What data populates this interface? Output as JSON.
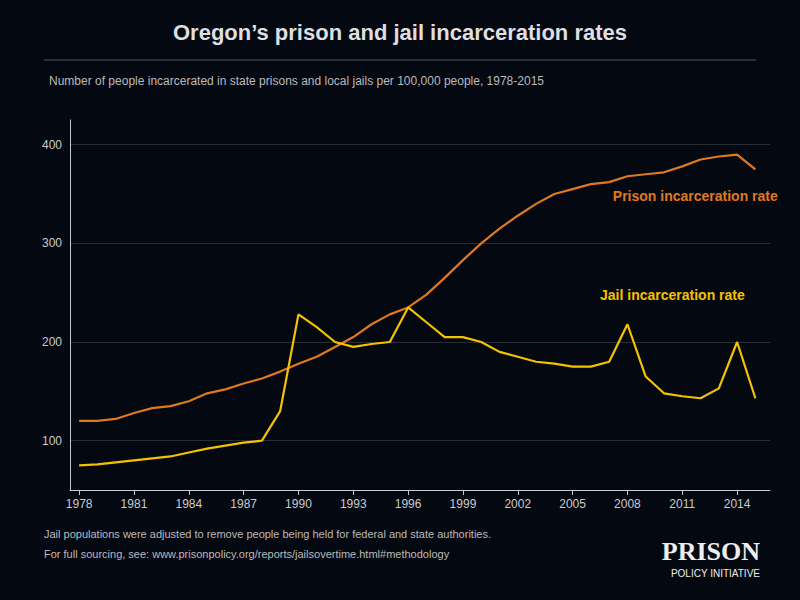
{
  "chart_data": {
    "type": "line",
    "title": "Oregon’s prison and jail incarceration rates",
    "subtitle": "Number of people incarcerated in state prisons and local jails per 100,000 people, 1978-2015",
    "x": [
      1978,
      1979,
      1980,
      1981,
      1982,
      1983,
      1984,
      1985,
      1986,
      1987,
      1988,
      1989,
      1990,
      1991,
      1992,
      1993,
      1994,
      1995,
      1996,
      1997,
      1998,
      1999,
      2000,
      2001,
      2002,
      2003,
      2004,
      2005,
      2006,
      2007,
      2008,
      2009,
      2010,
      2011,
      2012,
      2013,
      2014,
      2015
    ],
    "series": [
      {
        "color": "#e07820",
        "values": [
          120,
          120,
          122,
          128,
          133,
          135,
          140,
          148,
          152,
          158,
          163,
          170,
          178,
          185,
          195,
          205,
          218,
          228,
          235,
          248,
          265,
          283,
          300,
          315,
          328,
          340,
          350,
          355,
          360,
          362,
          368,
          370,
          372,
          378,
          385,
          388,
          390,
          375
        ]
      },
      {
        "color": "#f5c200",
        "values": [
          75,
          76,
          78,
          80,
          82,
          84,
          88,
          92,
          95,
          98,
          100,
          130,
          228,
          215,
          200,
          195,
          198,
          200,
          235,
          220,
          205,
          205,
          200,
          190,
          185,
          180,
          178,
          175,
          175,
          180,
          218,
          165,
          148,
          145,
          143,
          153,
          200,
          143
        ]
      }
    ],
    "annotations": [
      {
        "text": "Prison incarceration rate",
        "x": 2007.2,
        "y": 348,
        "color": "#e07820"
      },
      {
        "text": "Jail incarceration rate",
        "x": 2006.5,
        "y": 248,
        "color": "#f5c200"
      }
    ],
    "xlim": [
      1977.5,
      2015.8
    ],
    "xticks": [
      1978,
      1981,
      1984,
      1987,
      1990,
      1993,
      1996,
      1999,
      2002,
      2005,
      2008,
      2011,
      2014
    ],
    "ylim": [
      50,
      425
    ],
    "yticks": [
      100,
      200,
      300,
      400
    ],
    "grid": true,
    "footnotes": [
      "Jail populations were adjusted to remove people being held for federal and state authorities.",
      "For full sourcing, see: www.prisonpolicy.org/reports/jailsovertime.html#methodology"
    ],
    "logo": [
      "PRISON",
      "POLICY INITIATIVE"
    ]
  }
}
